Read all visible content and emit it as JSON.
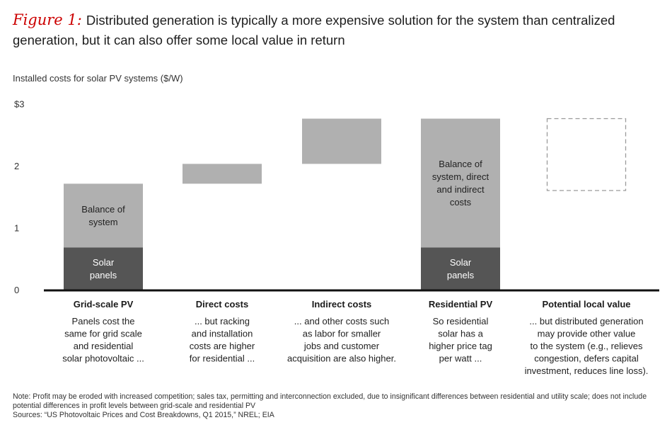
{
  "figure": {
    "label": "Figure 1:",
    "title": "Distributed generation is typically a more expensive solution for the system than centralized generation, but it can also offer some local value in return"
  },
  "chart_data": {
    "type": "bar",
    "subtype": "waterfall",
    "ylabel": "Installed costs for solar PV systems ($/W)",
    "ylim": [
      0,
      3
    ],
    "y_ticks": [
      "0",
      "1",
      "2",
      "$3"
    ],
    "grid": false,
    "colors": {
      "dark": "#555555",
      "light": "#b0b0b0",
      "outline": "#9a9a9a",
      "axis": "#111111"
    },
    "categories": [
      {
        "name": "Grid-scale PV",
        "description": [
          "Panels cost the",
          "same for grid scale",
          "and residential",
          "solar photovoltaic ..."
        ],
        "segments": [
          {
            "from": 0,
            "to": 0.68,
            "style": "dark",
            "label": [
              "Solar",
              "panels"
            ]
          },
          {
            "from": 0.68,
            "to": 1.71,
            "style": "light",
            "label": [
              "Balance of",
              "system"
            ]
          }
        ]
      },
      {
        "name": "Direct costs",
        "description": [
          "... but racking",
          "and installation",
          "costs are higher",
          "for residential ..."
        ],
        "segments": [
          {
            "from": 1.71,
            "to": 2.03,
            "style": "light",
            "label": []
          }
        ]
      },
      {
        "name": "Indirect costs",
        "description": [
          "... and other costs such",
          "as labor for smaller",
          "jobs and customer",
          "acquisition are also higher."
        ],
        "segments": [
          {
            "from": 2.03,
            "to": 2.76,
            "style": "light",
            "label": []
          }
        ]
      },
      {
        "name": "Residential PV",
        "description": [
          "So residential",
          "solar has a",
          "higher price tag",
          "per watt ..."
        ],
        "segments": [
          {
            "from": 0,
            "to": 0.68,
            "style": "dark",
            "label": [
              "Solar",
              "panels"
            ]
          },
          {
            "from": 0.68,
            "to": 2.76,
            "style": "light",
            "label": [
              "Balance of",
              "system, direct",
              "and indirect",
              "costs"
            ]
          }
        ]
      },
      {
        "name": "Potential local value",
        "description": [
          "... but distributed generation",
          "may provide other value",
          "to the system (e.g., relieves",
          "congestion, defers capital",
          "investment, reduces line loss)."
        ],
        "segments": [
          {
            "from": 1.6,
            "to": 2.76,
            "style": "dashed",
            "label": []
          }
        ]
      }
    ]
  },
  "footer": {
    "note": "Note: Profit may be eroded with increased competition; sales tax, permitting and interconnection excluded, due to insignificant differences between residential and utility scale; does not include potential differences in profit levels between grid-scale and residential PV",
    "sources": "Sources: “US Photovoltaic Prices and Cost Breakdowns, Q1 2015,” NREL; EIA"
  }
}
